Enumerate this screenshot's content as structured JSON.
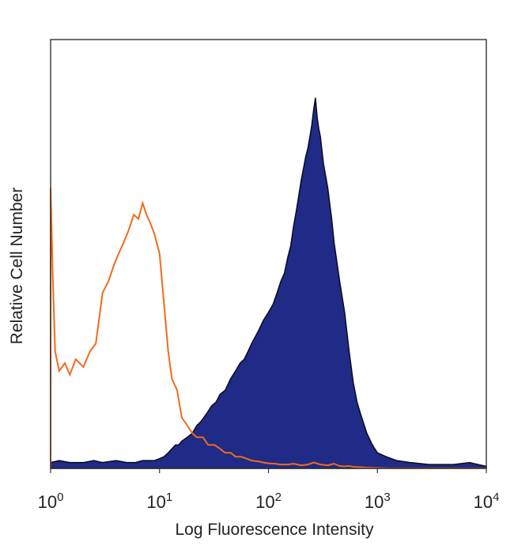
{
  "chart_data": {
    "type": "area",
    "xlabel": "Log Fluorescence Intensity",
    "ylabel": "Relative Cell Number",
    "x_scale": "log",
    "xlim": [
      1,
      10000
    ],
    "ylim": [
      0,
      100
    ],
    "grid": false,
    "legend": "none",
    "x_ticks": [
      {
        "base": "10",
        "exp": "0",
        "value": 1
      },
      {
        "base": "10",
        "exp": "1",
        "value": 10
      },
      {
        "base": "10",
        "exp": "2",
        "value": 100
      },
      {
        "base": "10",
        "exp": "3",
        "value": 1000
      },
      {
        "base": "10",
        "exp": "4",
        "value": 10000
      }
    ],
    "series": [
      {
        "style": "outline",
        "color": "#f26a1b",
        "x": [
          1,
          1.05,
          1.1,
          1.2,
          1.35,
          1.5,
          1.7,
          2,
          2.3,
          2.6,
          3,
          3.4,
          3.8,
          4.2,
          4.7,
          5.2,
          5.8,
          6.4,
          7,
          7.6,
          8.2,
          9,
          10,
          11,
          12,
          13,
          14.5,
          16,
          18,
          20,
          22,
          25,
          28,
          32,
          36,
          40,
          45,
          50,
          56,
          63,
          70,
          80,
          90,
          100,
          115,
          130,
          150,
          170,
          200,
          230,
          260,
          300,
          350,
          400,
          450,
          500,
          550,
          600,
          700,
          800,
          1000,
          1300,
          1600,
          2000,
          3000,
          5000,
          10000
        ],
        "y": [
          72,
          48,
          30,
          25,
          27,
          24,
          28,
          26,
          30,
          32,
          45,
          48,
          52,
          55,
          58,
          61,
          65,
          64,
          68,
          65,
          63,
          60,
          55,
          42,
          30,
          23,
          20,
          13,
          11,
          9,
          8,
          8,
          6,
          6,
          5,
          4,
          4,
          3,
          3,
          2.5,
          2,
          1.8,
          1.5,
          1.3,
          1.2,
          1,
          1,
          1.2,
          0.8,
          1,
          1.5,
          1,
          0.8,
          1.2,
          0.6,
          0.5,
          0.6,
          0.4,
          0.3,
          0.2,
          0.1,
          0,
          0,
          0,
          0,
          0,
          0
        ]
      },
      {
        "style": "filled",
        "color": "#1f2b86",
        "x": [
          1,
          1.2,
          1.5,
          2,
          2.5,
          3,
          4,
          5,
          6,
          7,
          8,
          9,
          10,
          11,
          12,
          13,
          14,
          15,
          16,
          18,
          20,
          22,
          24,
          27,
          30,
          33,
          36,
          40,
          45,
          50,
          55,
          60,
          65,
          70,
          80,
          90,
          100,
          110,
          120,
          130,
          140,
          150,
          160,
          170,
          180,
          190,
          200,
          210,
          220,
          230,
          240,
          250,
          260,
          270,
          280,
          290,
          300,
          320,
          350,
          380,
          400,
          450,
          500,
          550,
          600,
          650,
          700,
          800,
          900,
          1000,
          1200,
          1500,
          2000,
          3000,
          5000,
          7000,
          10000
        ],
        "y": [
          1.5,
          2,
          1.5,
          1.5,
          2,
          1.5,
          2,
          1.5,
          1.5,
          2,
          2,
          2,
          2.5,
          3,
          4,
          5,
          6,
          6,
          7,
          8,
          9,
          11,
          12,
          14,
          16,
          17,
          19,
          20,
          23,
          25,
          27,
          28,
          30,
          32,
          35,
          38,
          40,
          42,
          45,
          48,
          50,
          54,
          57,
          62,
          66,
          70,
          74,
          77,
          80,
          82,
          85,
          88,
          92,
          95,
          90,
          87,
          85,
          78,
          72,
          64,
          58,
          48,
          40,
          30,
          22,
          17,
          14,
          9,
          6,
          4,
          3,
          2,
          1.5,
          1,
          1,
          1.5,
          0.5
        ]
      }
    ]
  }
}
